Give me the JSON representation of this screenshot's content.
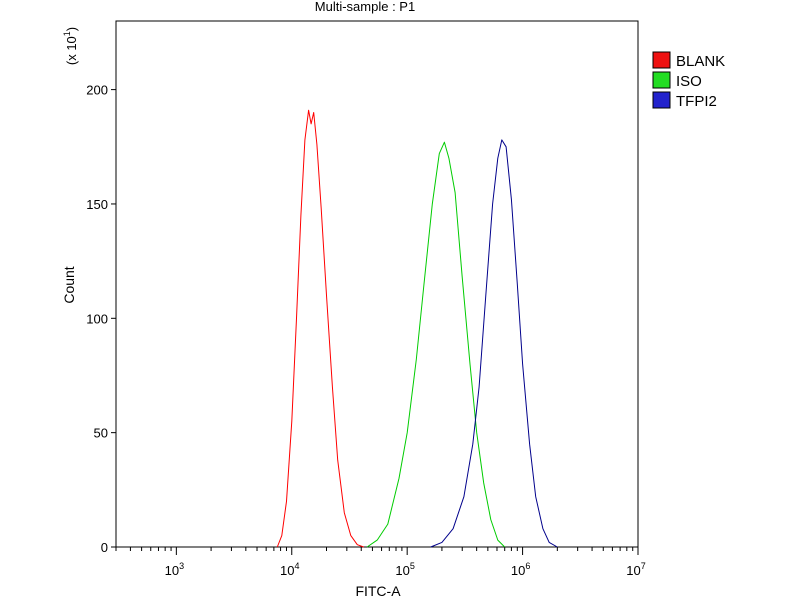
{
  "chart_data": {
    "type": "line",
    "title": "Multi-sample : P1",
    "xlabel": "FITC-A",
    "ylabel": "Count",
    "y_multiplier_label": "(x 10",
    "y_multiplier_exp": "1",
    "y_multiplier_close": ")",
    "x_scale": "log",
    "xlim": [
      300,
      10000000
    ],
    "ylim": [
      0,
      230
    ],
    "x_ticks": [
      {
        "value": 1000,
        "base": "10",
        "exp": "3"
      },
      {
        "value": 10000,
        "base": "10",
        "exp": "4"
      },
      {
        "value": 100000,
        "base": "10",
        "exp": "5"
      },
      {
        "value": 1000000,
        "base": "10",
        "exp": "6"
      },
      {
        "value": 10000000,
        "base": "10",
        "exp": "7"
      }
    ],
    "y_ticks": [
      {
        "value": 0,
        "label": "0"
      },
      {
        "value": 50,
        "label": "50"
      },
      {
        "value": 100,
        "label": "100"
      },
      {
        "value": 150,
        "label": "150"
      },
      {
        "value": 200,
        "label": "200"
      }
    ],
    "legend_position": "top-right",
    "series": [
      {
        "name": "BLANK",
        "color": "#ff0000",
        "legend_color": "#ee1111",
        "x": [
          7500,
          8200,
          9000,
          10000,
          11000,
          12000,
          13000,
          14000,
          14700,
          15500,
          16500,
          18000,
          20000,
          22500,
          25000,
          28500,
          32500,
          37000,
          42000
        ],
        "y": [
          0,
          5,
          20,
          55,
          100,
          145,
          178,
          191,
          185,
          190,
          176,
          148,
          110,
          70,
          38,
          15,
          5,
          1,
          0
        ]
      },
      {
        "name": "ISO",
        "color": "#00cc00",
        "legend_color": "#22dd22",
        "x": [
          45000,
          55000,
          68000,
          85000,
          100000,
          120000,
          140000,
          165000,
          190000,
          210000,
          230000,
          260000,
          300000,
          350000,
          400000,
          460000,
          530000,
          610000,
          700000
        ],
        "y": [
          0,
          3,
          10,
          30,
          50,
          82,
          115,
          150,
          172,
          177,
          170,
          155,
          118,
          80,
          50,
          28,
          12,
          3,
          0
        ]
      },
      {
        "name": "TFPI2",
        "color": "#00008b",
        "legend_color": "#2222cc",
        "x": [
          160000,
          200000,
          250000,
          310000,
          370000,
          420000,
          480000,
          550000,
          610000,
          660000,
          720000,
          800000,
          900000,
          1000000,
          1150000,
          1300000,
          1500000,
          1700000,
          2000000
        ],
        "y": [
          0,
          2,
          8,
          22,
          45,
          70,
          110,
          150,
          170,
          178,
          175,
          152,
          115,
          80,
          45,
          22,
          8,
          2,
          0
        ]
      }
    ]
  }
}
